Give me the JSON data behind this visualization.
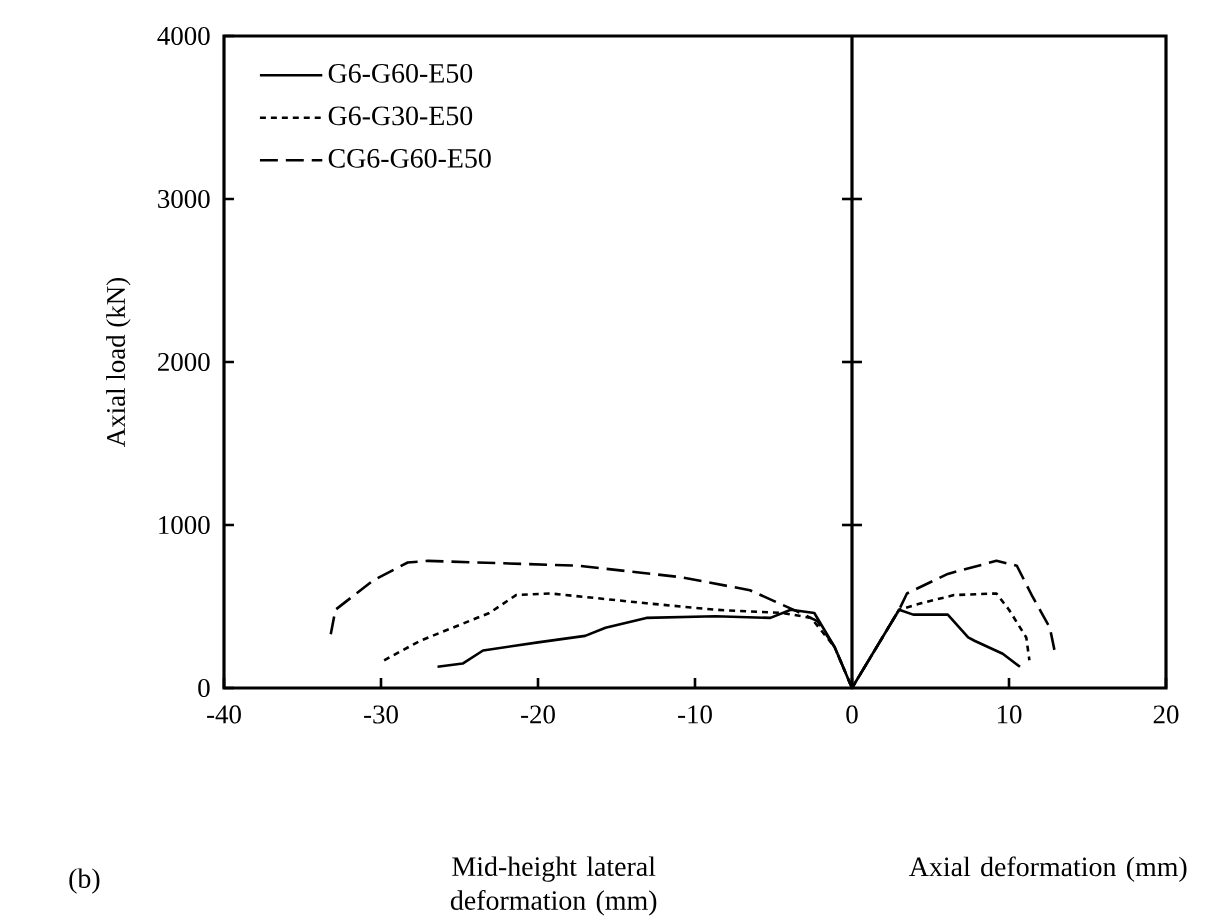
{
  "chart_data": {
    "type": "line",
    "ylabel": "Axial load (kN)",
    "xlim": [
      -40,
      20
    ],
    "xticks": [
      -40,
      -30,
      -20,
      -10,
      0,
      10,
      20
    ],
    "ylim": [
      0,
      4000
    ],
    "yticks": [
      0,
      1000,
      2000,
      3000,
      4000
    ],
    "grid": false,
    "legend": "top left",
    "ref_lines": [
      {
        "axis": "x",
        "value": 0,
        "color": "#000000",
        "line_style": "solid"
      }
    ],
    "annotations": [
      "Mid-height lateral deformation (mm)",
      "Axial deformation (mm)",
      "(b)"
    ],
    "series": [
      {
        "name": "G6-G60-E50",
        "color": "#000000",
        "line_style": "solid",
        "x": [
          -26.4,
          -24.8,
          -23.5,
          -20,
          -17,
          -15.7,
          -13.1,
          -8.7,
          -5.2,
          -3.9,
          -2.4,
          -1.1,
          0,
          3,
          3.9,
          6.1,
          7.4,
          7.8,
          9.6,
          10.7
        ],
        "values": [
          130,
          150,
          230,
          280,
          320,
          370,
          430,
          440,
          430,
          480,
          460,
          250,
          0,
          480,
          450,
          450,
          310,
          290,
          210,
          130
        ]
      },
      {
        "name": "G6-G30-E50",
        "color": "#000000",
        "line_style": "dotted",
        "x": [
          -29.8,
          -27.5,
          -23.1,
          -21.4,
          -19.2,
          -13.1,
          -8.7,
          -4.4,
          -2.6,
          -1.1,
          0,
          3,
          4.4,
          6.5,
          9.2,
          10,
          11.1,
          11.3
        ],
        "values": [
          170,
          290,
          460,
          570,
          580,
          520,
          480,
          460,
          430,
          250,
          0,
          480,
          520,
          570,
          580,
          480,
          310,
          170
        ]
      },
      {
        "name": "CG6-G60-E50",
        "color": "#000000",
        "line_style": "dashed",
        "x": [
          -33.2,
          -32.9,
          -30.5,
          -28.3,
          -27,
          -17.4,
          -10.9,
          -6.5,
          -3.5,
          -2.2,
          -1.1,
          0,
          3,
          3.5,
          6.1,
          9.2,
          10.5,
          11.5,
          12.6,
          12.9
        ],
        "values": [
          330,
          480,
          660,
          770,
          780,
          750,
          680,
          600,
          470,
          410,
          250,
          0,
          480,
          580,
          700,
          780,
          750,
          560,
          370,
          230
        ]
      }
    ]
  }
}
